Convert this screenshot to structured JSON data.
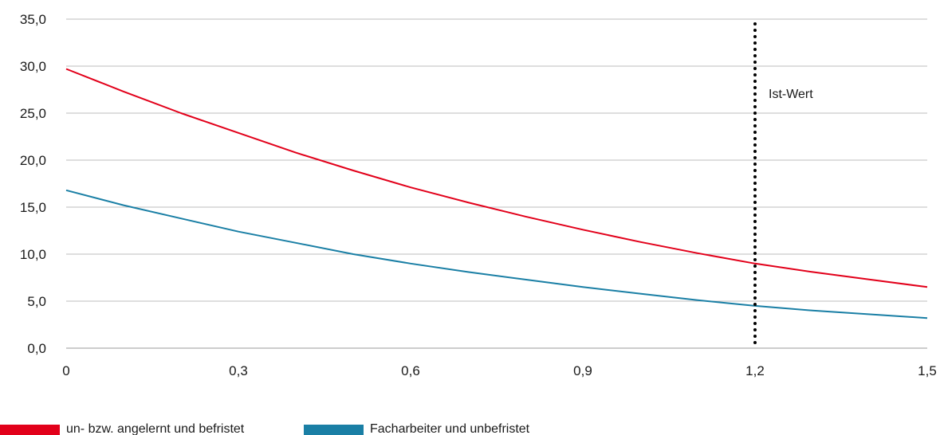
{
  "chart_data": {
    "type": "line",
    "title": "",
    "xlabel": "",
    "ylabel": "",
    "xlim": [
      0,
      1.5
    ],
    "ylim": [
      0,
      35
    ],
    "x_ticks": [
      "0",
      "0,3",
      "0,6",
      "0,9",
      "1,2",
      "1,5"
    ],
    "x_tick_values": [
      0,
      0.3,
      0.6,
      0.9,
      1.2,
      1.5
    ],
    "y_ticks": [
      "0,0",
      "5,0",
      "10,0",
      "15,0",
      "20,0",
      "25,0",
      "30,0",
      "35,0"
    ],
    "y_tick_values": [
      0,
      5,
      10,
      15,
      20,
      25,
      30,
      35
    ],
    "grid": "horizontal",
    "legend_position": "bottom-left",
    "series": [
      {
        "name": "un- bzw. angelernt und befristet",
        "color": "#e2001a",
        "x": [
          0,
          0.1,
          0.2,
          0.3,
          0.4,
          0.5,
          0.6,
          0.7,
          0.8,
          0.9,
          1.0,
          1.1,
          1.2,
          1.3,
          1.4,
          1.5
        ],
        "y": [
          29.7,
          27.3,
          25.0,
          22.9,
          20.8,
          18.9,
          17.1,
          15.5,
          14.0,
          12.6,
          11.3,
          10.1,
          9.0,
          8.1,
          7.3,
          6.5
        ]
      },
      {
        "name": "Facharbeiter und unbefristet",
        "color": "#1a7fa5",
        "x": [
          0,
          0.1,
          0.2,
          0.3,
          0.4,
          0.5,
          0.6,
          0.7,
          0.8,
          0.9,
          1.0,
          1.1,
          1.2,
          1.3,
          1.4,
          1.5
        ],
        "y": [
          16.8,
          15.2,
          13.8,
          12.4,
          11.2,
          10.0,
          9.0,
          8.1,
          7.3,
          6.5,
          5.8,
          5.1,
          4.5,
          4.0,
          3.6,
          3.2
        ]
      }
    ],
    "annotations": [
      {
        "type": "vertical-line",
        "x": 1.2,
        "style": "dotted",
        "color": "#000000",
        "label": "Ist-Wert"
      }
    ]
  }
}
